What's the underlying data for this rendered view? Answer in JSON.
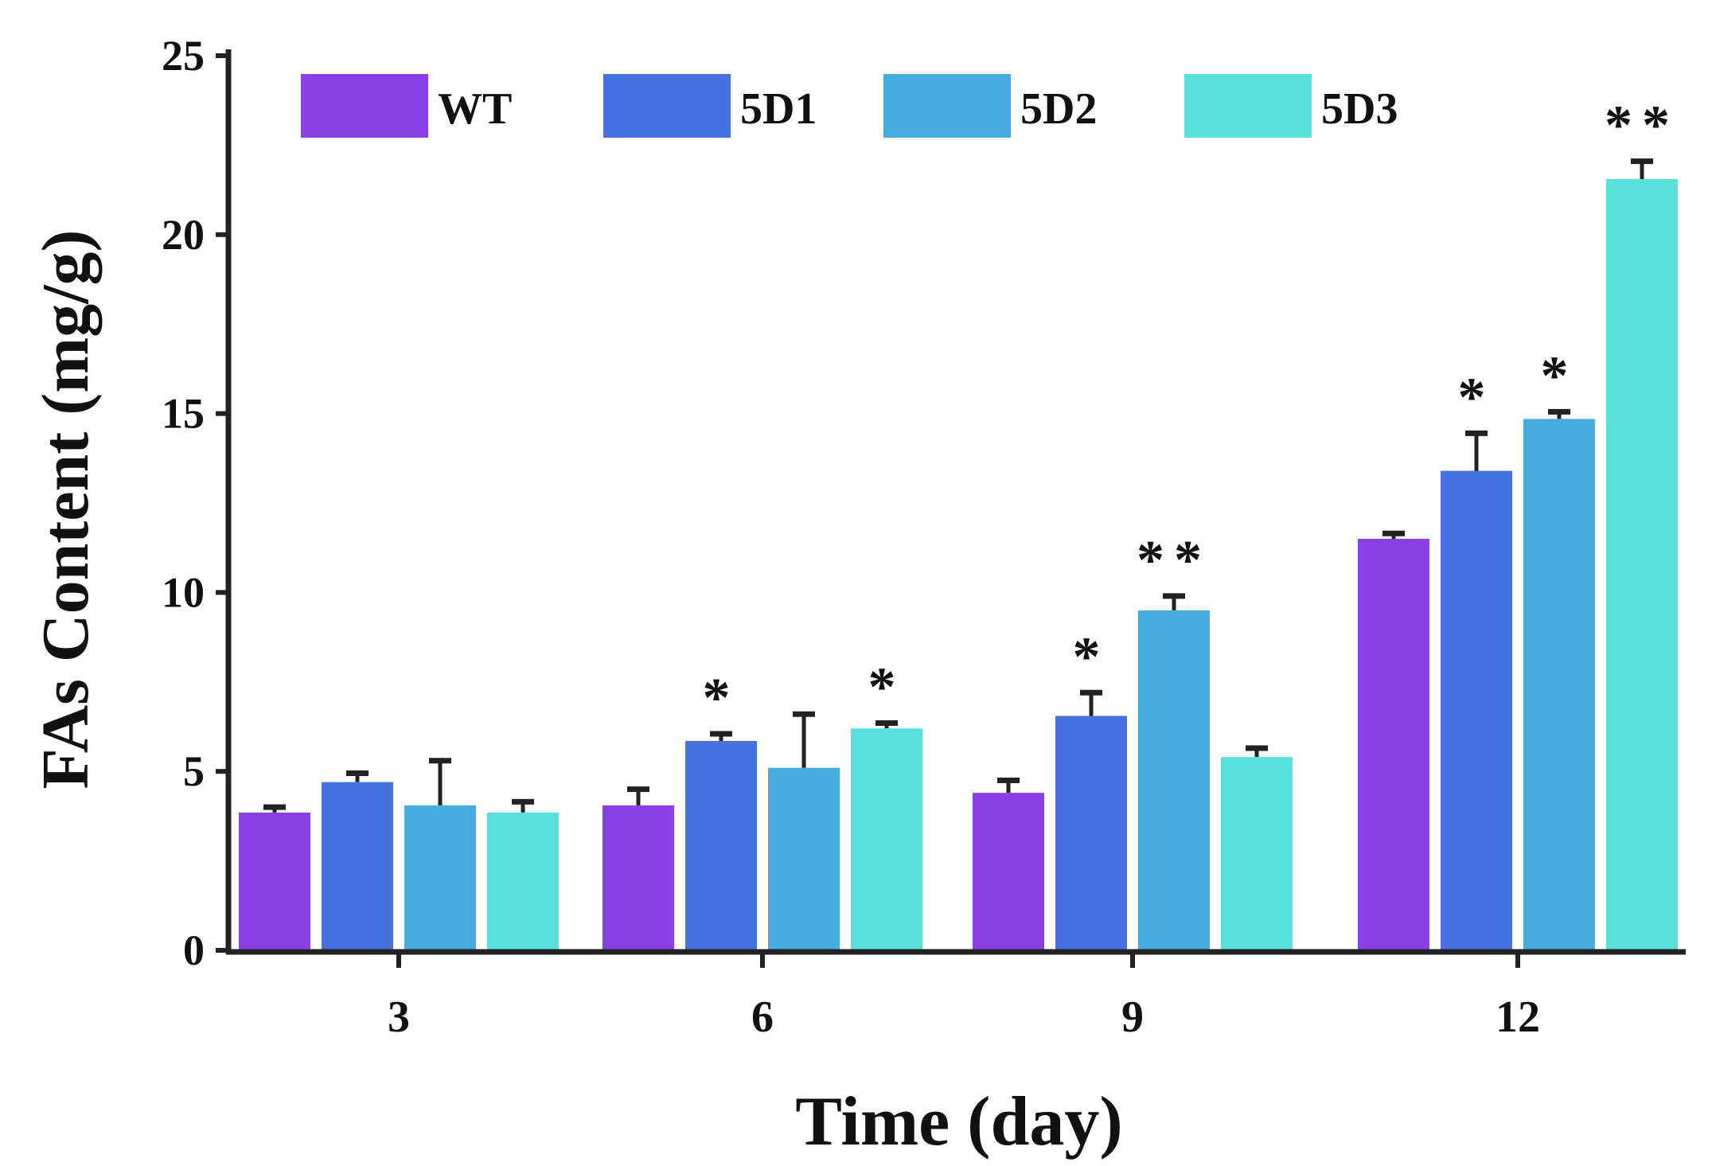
{
  "chart_data": {
    "type": "bar",
    "title": "",
    "xlabel": "Time (day)",
    "ylabel": "FAs Content (mg/g)",
    "ylim": [
      0,
      25
    ],
    "yticks": [
      0,
      5,
      10,
      15,
      20,
      25
    ],
    "categories": [
      "3",
      "6",
      "9",
      "12"
    ],
    "legend_position": "top",
    "grid": false,
    "series": [
      {
        "name": "WT",
        "color": "#8b3fe6",
        "values": [
          3.85,
          4.05,
          4.4,
          11.5
        ],
        "errors": [
          0.15,
          0.45,
          0.35,
          0.15
        ],
        "sig": [
          "",
          "",
          "",
          ""
        ]
      },
      {
        "name": "5D1",
        "color": "#4472e0",
        "values": [
          4.7,
          5.85,
          6.55,
          13.4
        ],
        "errors": [
          0.25,
          0.2,
          0.65,
          1.05
        ],
        "sig": [
          "",
          "*",
          "*",
          "*"
        ]
      },
      {
        "name": "5D2",
        "color": "#45addf",
        "values": [
          4.05,
          5.1,
          9.5,
          14.85
        ],
        "errors": [
          1.25,
          1.5,
          0.4,
          0.2
        ],
        "sig": [
          "",
          "",
          "**",
          "*"
        ]
      },
      {
        "name": "5D3",
        "color": "#57e0dc",
        "values": [
          3.85,
          6.2,
          5.4,
          21.55
        ],
        "errors": [
          0.3,
          0.15,
          0.25,
          0.5
        ],
        "sig": [
          "",
          "*",
          "",
          "**"
        ]
      }
    ]
  }
}
